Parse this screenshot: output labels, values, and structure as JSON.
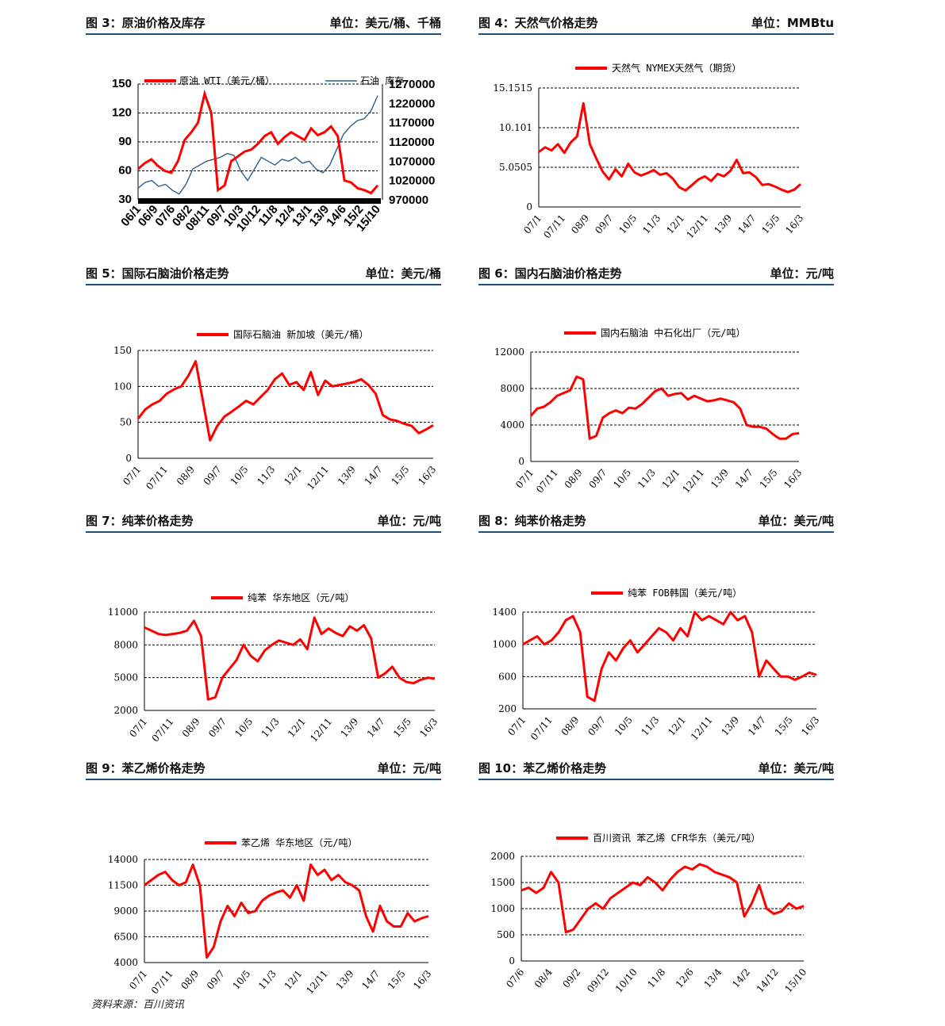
{
  "source": "资料来源：百川资讯",
  "colors": {
    "series": "#ff0000",
    "inventory": "#2e5f8a",
    "rule": "#1f4e79",
    "grid": "#000000"
  },
  "panels": [
    {
      "title": "图 3：原油价格及库存",
      "unit": "单位：美元/桶、千桶",
      "chart_data": {
        "type": "line",
        "title": "",
        "x_ticks": [
          "06/1",
          "06/9",
          "07/6",
          "08/2",
          "08/11",
          "09/7",
          "10/3",
          "10/12",
          "11/8",
          "12/4",
          "13/1",
          "13/9",
          "14/6",
          "15/2",
          "15/10"
        ],
        "y_ticks": [
          "30",
          "60",
          "90",
          "120",
          "150"
        ],
        "ylim": [
          30,
          150
        ],
        "y2_ticks": [
          "970000",
          "1020000",
          "1070000",
          "1120000",
          "1170000",
          "1220000",
          "1270000"
        ],
        "y2lim": [
          970000,
          1270000
        ],
        "series": [
          {
            "name": "原油 WTI（美元/桶）",
            "axis": "left",
            "values": [
              62,
              68,
              72,
              65,
              60,
              58,
              70,
              92,
              100,
              110,
              140,
              120,
              40,
              45,
              70,
              75,
              80,
              82,
              88,
              96,
              100,
              88,
              95,
              100,
              96,
              92,
              104,
              97,
              100,
              106,
              96,
              50,
              48,
              42,
              40,
              37,
              45
            ]
          },
          {
            "name": "石油 库存",
            "axis": "right",
            "values": [
              1000000,
              1015000,
              1020000,
              1005000,
              1010000,
              995000,
              985000,
              1010000,
              1050000,
              1060000,
              1070000,
              1075000,
              1080000,
              1090000,
              1085000,
              1045000,
              1020000,
              1050000,
              1080000,
              1070000,
              1060000,
              1075000,
              1070000,
              1080000,
              1065000,
              1070000,
              1050000,
              1040000,
              1060000,
              1100000,
              1140000,
              1160000,
              1175000,
              1180000,
              1200000,
              1240000
            ]
          }
        ]
      }
    },
    {
      "title": "图 4：天然气价格走势",
      "unit": "单位：MMBtu",
      "chart_data": {
        "type": "line",
        "title": "",
        "x_ticks": [
          "07/1",
          "07/11",
          "08/9",
          "09/7",
          "10/5",
          "11/3",
          "12/1",
          "12/11",
          "13/9",
          "14/7",
          "15/5",
          "16/3"
        ],
        "y_ticks": [
          "0",
          "5.0505",
          "10.101",
          "15.1515"
        ],
        "ylim": [
          0,
          15.1515
        ],
        "series": [
          {
            "name": "天然气 NYMEX天然气（期货）",
            "values": [
              7.0,
              7.6,
              7.2,
              8.0,
              6.9,
              8.2,
              9.0,
              13.2,
              8.0,
              6.2,
              4.5,
              3.5,
              4.8,
              3.9,
              5.5,
              4.4,
              4.0,
              4.3,
              4.7,
              4.1,
              4.3,
              3.6,
              2.5,
              2.1,
              2.8,
              3.5,
              3.9,
              3.3,
              4.2,
              3.9,
              4.6,
              6.0,
              4.3,
              4.4,
              3.8,
              2.8,
              2.9,
              2.6,
              2.2,
              1.9,
              2.2,
              2.9
            ]
          }
        ]
      }
    },
    {
      "title": "图 5：国际石脑油价格走势",
      "unit": "单位：美元/桶",
      "chart_data": {
        "type": "line",
        "title": "",
        "x_ticks": [
          "07/1",
          "07/11",
          "08/9",
          "09/7",
          "10/5",
          "11/3",
          "12/1",
          "12/11",
          "13/9",
          "14/7",
          "15/5",
          "16/3"
        ],
        "y_ticks": [
          "0",
          "50",
          "100",
          "150"
        ],
        "ylim": [
          0,
          150
        ],
        "series": [
          {
            "name": "国际石脑油 新加坡（美元/桶）",
            "values": [
              55,
              68,
              75,
              80,
              90,
              96,
              100,
              115,
              135,
              80,
              25,
              45,
              58,
              65,
              72,
              80,
              75,
              85,
              95,
              110,
              118,
              102,
              106,
              95,
              120,
              88,
              108,
              100,
              102,
              104,
              106,
              110,
              102,
              90,
              60,
              54,
              52,
              48,
              45,
              35,
              40,
              46
            ]
          }
        ]
      }
    },
    {
      "title": "图 6：国内石脑油价格走势",
      "unit": "单位：元/吨",
      "chart_data": {
        "type": "line",
        "title": "",
        "x_ticks": [
          "07/1",
          "07/11",
          "08/9",
          "09/7",
          "10/5",
          "11/3",
          "12/1",
          "12/11",
          "13/9",
          "14/7",
          "15/5",
          "16/3"
        ],
        "y_ticks": [
          "0",
          "4000",
          "8000",
          "12000"
        ],
        "ylim": [
          0,
          12000
        ],
        "series": [
          {
            "name": "国内石脑油 中石化出厂（元/吨）",
            "values": [
              5000,
              5800,
              6000,
              6500,
              7200,
              7500,
              7800,
              9300,
              9000,
              2500,
              2800,
              4800,
              5300,
              5600,
              5300,
              5900,
              5800,
              6300,
              7000,
              7700,
              8000,
              7200,
              7400,
              7500,
              6800,
              7200,
              6900,
              6600,
              6700,
              6900,
              6700,
              6500,
              5800,
              4000,
              3800,
              3800,
              3600,
              3000,
              2500,
              2500,
              3000,
              3100
            ]
          }
        ]
      }
    },
    {
      "title": "图 7：纯苯价格走势",
      "unit": "单位：元/吨",
      "chart_data": {
        "type": "line",
        "title": "",
        "x_ticks": [
          "07/1",
          "07/11",
          "08/9",
          "09/7",
          "10/5",
          "11/3",
          "12/1",
          "12/11",
          "13/9",
          "14/7",
          "15/5",
          "16/3"
        ],
        "y_ticks": [
          "2000",
          "5000",
          "8000",
          "11000"
        ],
        "ylim": [
          2000,
          11000
        ],
        "series": [
          {
            "name": "纯苯 华东地区（元/吨）",
            "values": [
              9600,
              9300,
              9000,
              8900,
              9000,
              9100,
              9300,
              10200,
              8800,
              3000,
              3200,
              5000,
              5800,
              6600,
              8000,
              7000,
              6500,
              7500,
              8000,
              8400,
              8200,
              8000,
              8500,
              7600,
              10500,
              9000,
              9500,
              9100,
              8800,
              9700,
              9300,
              9800,
              8600,
              5000,
              5400,
              6000,
              5000,
              4600,
              4500,
              4800,
              5000,
              4900
            ]
          }
        ]
      }
    },
    {
      "title": "图 8：纯苯价格走势",
      "unit": "单位：美元/吨",
      "chart_data": {
        "type": "line",
        "title": "",
        "x_ticks": [
          "07/1",
          "07/11",
          "08/9",
          "09/7",
          "10/5",
          "11/3",
          "12/1",
          "12/11",
          "13/9",
          "14/7",
          "15/5",
          "16/3"
        ],
        "y_ticks": [
          "200",
          "600",
          "1000",
          "1400"
        ],
        "ylim": [
          200,
          1400
        ],
        "series": [
          {
            "name": "纯苯 FOB韩国（美元/吨）",
            "values": [
              1000,
              1050,
              1100,
              1000,
              1050,
              1150,
              1300,
              1350,
              1150,
              350,
              300,
              700,
              900,
              800,
              950,
              1050,
              900,
              1000,
              1100,
              1200,
              1150,
              1050,
              1200,
              1100,
              1400,
              1300,
              1350,
              1300,
              1250,
              1400,
              1300,
              1350,
              1150,
              600,
              800,
              700,
              600,
              600,
              560,
              600,
              650,
              620
            ]
          }
        ]
      }
    },
    {
      "title": "图 9：苯乙烯价格走势",
      "unit": "单位：元/吨",
      "chart_data": {
        "type": "line",
        "title": "",
        "x_ticks": [
          "07/1",
          "07/11",
          "08/9",
          "09/7",
          "10/5",
          "11/3",
          "12/1",
          "12/11",
          "13/9",
          "14/7",
          "15/5",
          "16/3"
        ],
        "y_ticks": [
          "4000",
          "6500",
          "9000",
          "11500",
          "14000"
        ],
        "ylim": [
          4000,
          14000
        ],
        "series": [
          {
            "name": "苯乙烯 华东地区（元/吨）",
            "values": [
              11500,
              12000,
              12500,
              12800,
              12000,
              11500,
              11800,
              13500,
              11500,
              4500,
              5500,
              8000,
              9500,
              8500,
              9800,
              8800,
              9000,
              10000,
              10500,
              10800,
              11000,
              10300,
              11500,
              10000,
              13500,
              12500,
              13000,
              12000,
              12500,
              11800,
              11500,
              11000,
              8500,
              7000,
              9500,
              8000,
              7500,
              7500,
              8800,
              8000,
              8300,
              8500
            ]
          }
        ]
      }
    },
    {
      "title": "图 10：苯乙烯价格走势",
      "unit": "单位：美元/吨",
      "chart_data": {
        "type": "line",
        "title": "",
        "x_ticks": [
          "07/6",
          "08/4",
          "09/2",
          "09/12",
          "10/10",
          "11/8",
          "12/6",
          "13/4",
          "14/2",
          "14/12",
          "15/10"
        ],
        "y_ticks": [
          "0",
          "500",
          "1000",
          "1500",
          "2000"
        ],
        "ylim": [
          0,
          2000
        ],
        "series": [
          {
            "name": "百川资讯 苯乙烯 CFR华东（美元/吨）",
            "values": [
              1350,
              1400,
              1300,
              1400,
              1700,
              1500,
              550,
              600,
              800,
              1000,
              1100,
              1000,
              1200,
              1300,
              1400,
              1500,
              1450,
              1600,
              1500,
              1350,
              1550,
              1700,
              1800,
              1750,
              1850,
              1800,
              1700,
              1650,
              1600,
              1500,
              850,
              1100,
              1450,
              1000,
              900,
              950,
              1100,
              1000,
              1050
            ]
          }
        ]
      }
    }
  ]
}
